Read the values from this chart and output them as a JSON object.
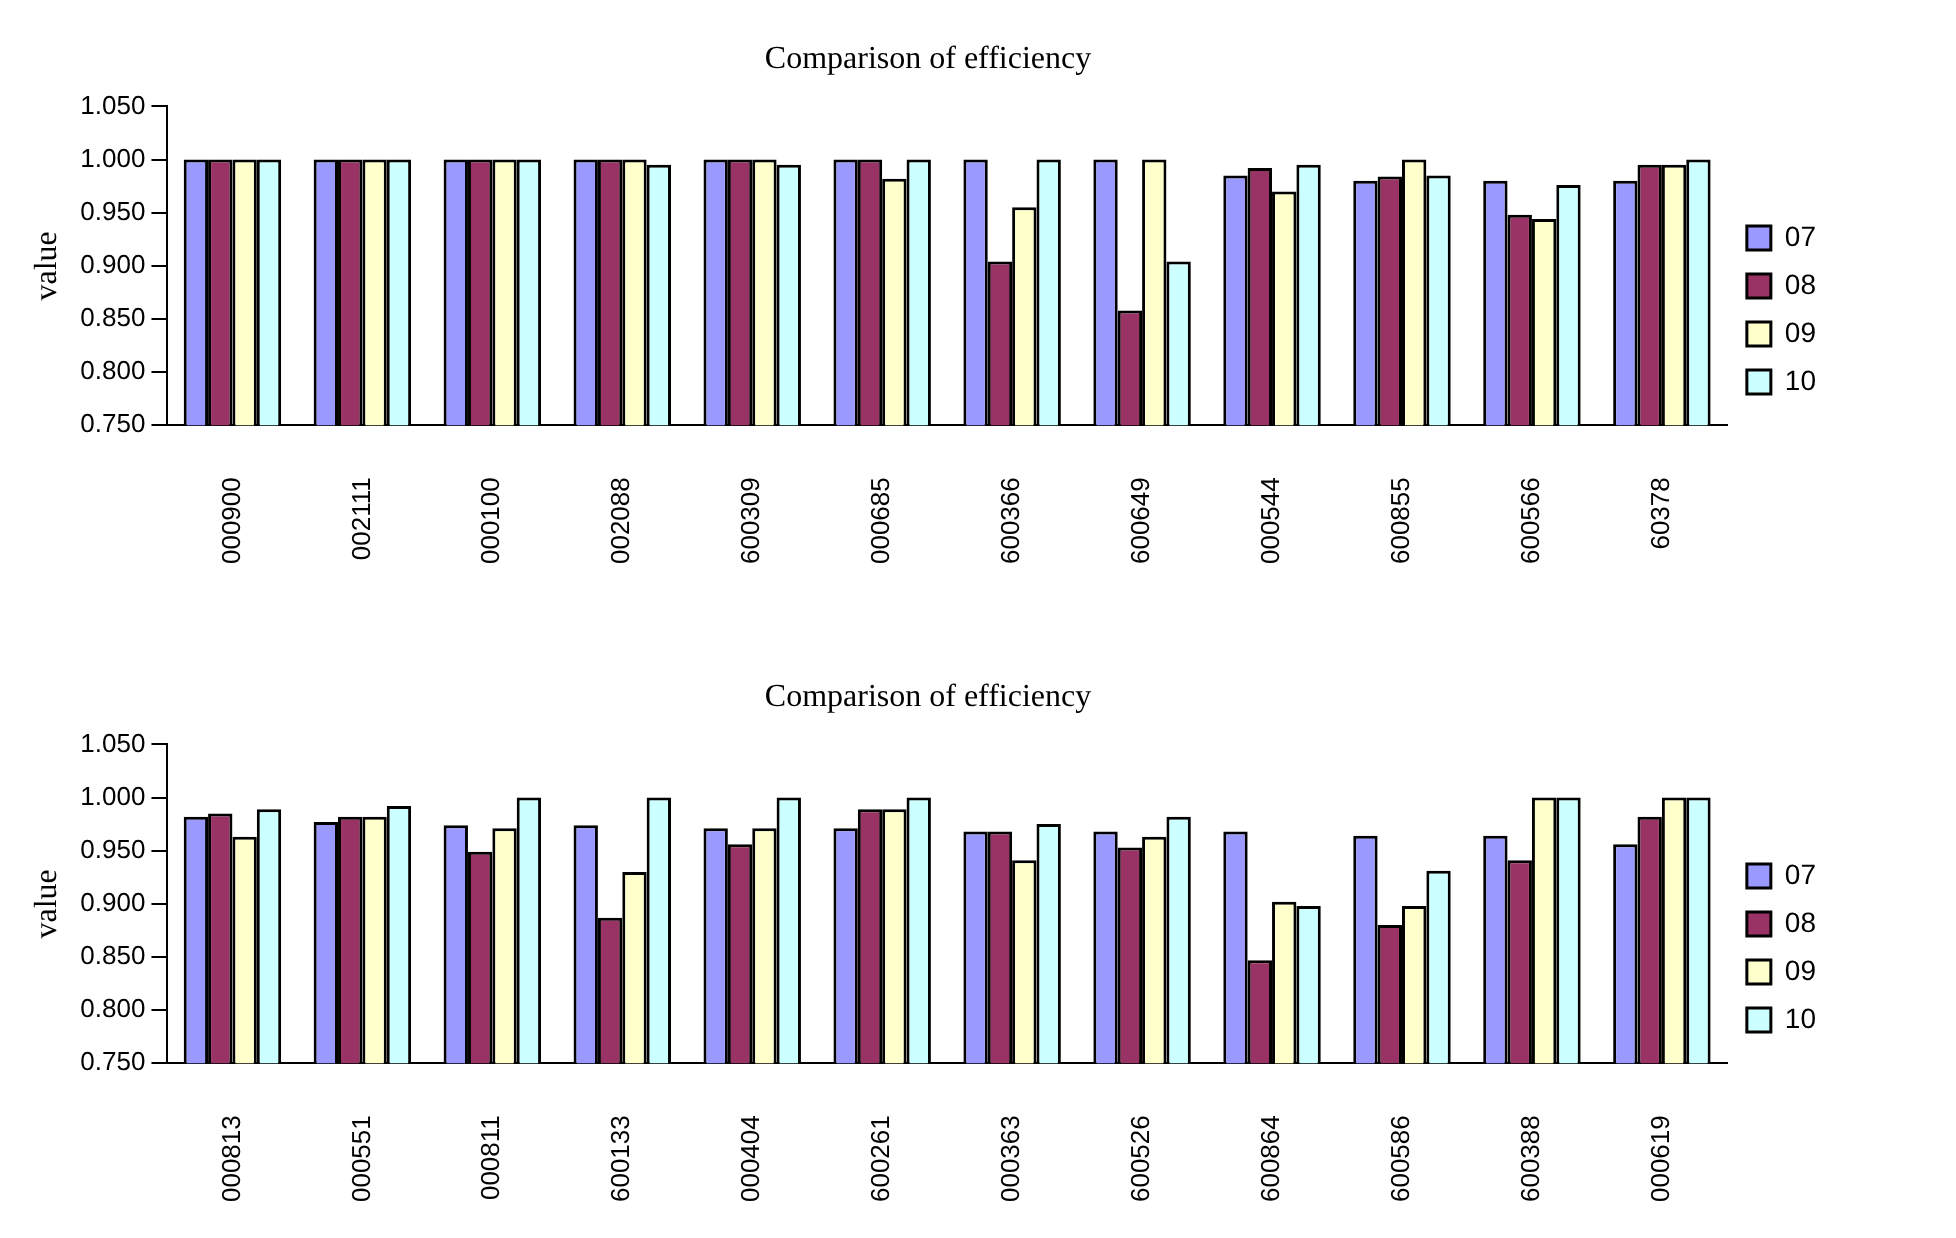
{
  "chart_data": [
    {
      "type": "bar",
      "title": "Comparison of efficiency",
      "ylabel": "value",
      "categories": [
        "000900",
        "002111",
        "000100",
        "002088",
        "600309",
        "000685",
        "600366",
        "600649",
        "000544",
        "600855",
        "600566",
        "60378"
      ],
      "series": [
        {
          "name": "07",
          "color": "#9999ff",
          "values": [
            1,
            1,
            1,
            1,
            1,
            1,
            1,
            1,
            0.985,
            0.98,
            0.98,
            0.98
          ]
        },
        {
          "name": "08",
          "color": "#993366",
          "values": [
            1,
            1,
            1,
            1,
            1,
            1,
            0.904,
            0.858,
            0.992,
            0.984,
            0.948,
            0.995
          ]
        },
        {
          "name": "09",
          "color": "#ffffcc",
          "values": [
            1,
            1,
            1,
            1,
            1,
            0.982,
            0.955,
            1,
            0.97,
            1,
            0.944,
            0.995
          ]
        },
        {
          "name": "10",
          "color": "#ccffff",
          "values": [
            1,
            1,
            1,
            0.995,
            0.995,
            1,
            1,
            0.904,
            0.995,
            0.985,
            0.976,
            1
          ]
        }
      ],
      "ylim": [
        0.75,
        1.05
      ],
      "yticks": [
        {
          "value": 0.75,
          "label": "0.750"
        },
        {
          "value": 0.8,
          "label": "0.800"
        },
        {
          "value": 0.85,
          "label": "0.850"
        },
        {
          "value": 0.9,
          "label": "0.900"
        },
        {
          "value": 0.95,
          "label": "0.950"
        },
        {
          "value": 1,
          "label": "1.000"
        },
        {
          "value": 1.05,
          "label": "1.050"
        }
      ],
      "grid": false,
      "legend": "right"
    },
    {
      "type": "bar",
      "title": "Comparison of efficiency",
      "ylabel": "value",
      "categories": [
        "000813",
        "000551",
        "000811",
        "600133",
        "000404",
        "600261",
        "000363",
        "600526",
        "600864",
        "600586",
        "600388",
        "000619"
      ],
      "series": [
        {
          "name": "07",
          "color": "#9999ff",
          "values": [
            0.982,
            0.977,
            0.974,
            0.974,
            0.971,
            0.971,
            0.968,
            0.968,
            0.968,
            0.964,
            0.964,
            0.956
          ]
        },
        {
          "name": "08",
          "color": "#993366",
          "values": [
            0.985,
            0.982,
            0.949,
            0.887,
            0.956,
            0.989,
            0.968,
            0.953,
            0.847,
            0.88,
            0.941,
            0.982
          ]
        },
        {
          "name": "09",
          "color": "#ffffcc",
          "values": [
            0.963,
            0.982,
            0.971,
            0.93,
            0.971,
            0.989,
            0.941,
            0.963,
            0.902,
            0.898,
            1,
            1
          ]
        },
        {
          "name": "10",
          "color": "#ccffff",
          "values": [
            0.989,
            0.992,
            1,
            1,
            1,
            1,
            0.975,
            0.982,
            0.898,
            0.931,
            1,
            1
          ]
        }
      ],
      "ylim": [
        0.75,
        1.05
      ],
      "yticks": [
        {
          "value": 0.75,
          "label": "0.750"
        },
        {
          "value": 0.8,
          "label": "0.800"
        },
        {
          "value": 0.85,
          "label": "0.850"
        },
        {
          "value": 0.9,
          "label": "0.900"
        },
        {
          "value": 0.95,
          "label": "0.950"
        },
        {
          "value": 1,
          "label": "1.000"
        },
        {
          "value": 1.05,
          "label": "1.050"
        }
      ],
      "grid": false,
      "legend": "right"
    }
  ]
}
